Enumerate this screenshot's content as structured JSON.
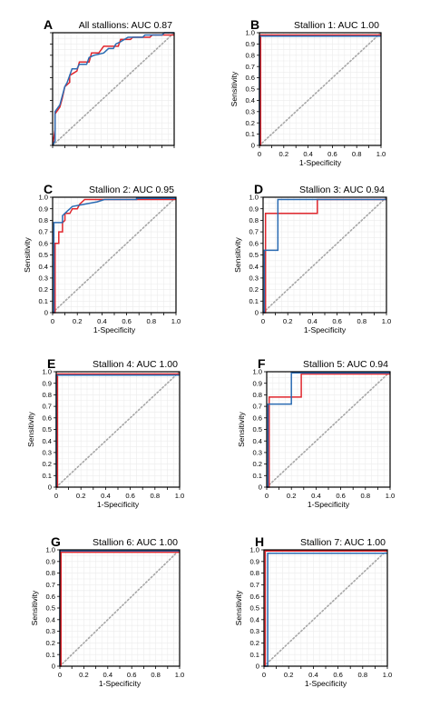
{
  "colors": {
    "red": "#e0262d",
    "blue": "#2b6bb2",
    "diagonal": "#a6a6a6",
    "grid": "#ececec",
    "frame": "#000000"
  },
  "chart_data": [
    {
      "type": "line",
      "letter": "A",
      "title": "All stallions: AUC 0.87",
      "xlabel": "",
      "ylabel": "",
      "xlim": [
        0,
        1
      ],
      "ylim": [
        0,
        1
      ],
      "ticks_labeled": false,
      "grid": true,
      "reference_diagonal": true,
      "series": [
        {
          "color": "red",
          "points": [
            [
              0,
              0
            ],
            [
              0.02,
              0.14
            ],
            [
              0.02,
              0.28
            ],
            [
              0.06,
              0.34
            ],
            [
              0.08,
              0.42
            ],
            [
              0.1,
              0.52
            ],
            [
              0.14,
              0.56
            ],
            [
              0.14,
              0.62
            ],
            [
              0.2,
              0.66
            ],
            [
              0.22,
              0.74
            ],
            [
              0.3,
              0.74
            ],
            [
              0.32,
              0.82
            ],
            [
              0.38,
              0.82
            ],
            [
              0.42,
              0.88
            ],
            [
              0.54,
              0.88
            ],
            [
              0.56,
              0.94
            ],
            [
              0.64,
              0.94
            ],
            [
              0.66,
              0.96
            ],
            [
              0.8,
              0.96
            ],
            [
              0.82,
              0.98
            ],
            [
              1,
              0.98
            ]
          ]
        },
        {
          "color": "blue",
          "points": [
            [
              0,
              0
            ],
            [
              0.02,
              0.04
            ],
            [
              0.02,
              0.3
            ],
            [
              0.06,
              0.36
            ],
            [
              0.08,
              0.44
            ],
            [
              0.1,
              0.52
            ],
            [
              0.12,
              0.56
            ],
            [
              0.14,
              0.62
            ],
            [
              0.16,
              0.68
            ],
            [
              0.2,
              0.68
            ],
            [
              0.22,
              0.72
            ],
            [
              0.28,
              0.72
            ],
            [
              0.3,
              0.78
            ],
            [
              0.34,
              0.8
            ],
            [
              0.42,
              0.82
            ],
            [
              0.46,
              0.86
            ],
            [
              0.5,
              0.86
            ],
            [
              0.52,
              0.9
            ],
            [
              0.56,
              0.92
            ],
            [
              0.62,
              0.96
            ],
            [
              0.74,
              0.96
            ],
            [
              0.76,
              0.98
            ],
            [
              0.9,
              0.98
            ],
            [
              0.92,
              1
            ],
            [
              1,
              1
            ]
          ]
        }
      ]
    },
    {
      "type": "line",
      "letter": "B",
      "title": "Stallion 1: AUC 1.00",
      "xlabel": "1-Specificity",
      "ylabel": "Sensitivity",
      "xlim": [
        0,
        1
      ],
      "ylim": [
        0,
        1
      ],
      "ticks_labeled": true,
      "x_ticks": [
        "0",
        "0.2",
        "0.4",
        "0.6",
        "0.8",
        "1.0"
      ],
      "y_ticks": [
        "0",
        "0.1",
        "0.2",
        "0.3",
        "0.4",
        "0.5",
        "0.6",
        "0.7",
        "0.8",
        "0.9",
        "1.0"
      ],
      "grid": true,
      "reference_diagonal": true,
      "series": [
        {
          "color": "red",
          "points": [
            [
              0,
              0
            ],
            [
              0.01,
              0
            ],
            [
              0.01,
              0.98
            ],
            [
              1,
              0.98
            ]
          ]
        },
        {
          "color": "blue",
          "points": [
            [
              0,
              0
            ],
            [
              0,
              0.97
            ],
            [
              1,
              0.97
            ]
          ]
        }
      ]
    },
    {
      "type": "line",
      "letter": "C",
      "title": "Stallion 2: AUC 0.95",
      "xlabel": "1-Specificity",
      "ylabel": "Sensitivity",
      "xlim": [
        0,
        1
      ],
      "ylim": [
        0,
        1
      ],
      "ticks_labeled": true,
      "x_ticks": [
        "0",
        "0.2",
        "0.4",
        "0.6",
        "0.8",
        "1.0"
      ],
      "y_ticks": [
        "0",
        "0.1",
        "0.2",
        "0.3",
        "0.4",
        "0.5",
        "0.6",
        "0.7",
        "0.8",
        "0.9",
        "1.0"
      ],
      "grid": true,
      "reference_diagonal": true,
      "series": [
        {
          "color": "red",
          "points": [
            [
              0,
              0
            ],
            [
              0.02,
              0
            ],
            [
              0.02,
              0.6
            ],
            [
              0.05,
              0.6
            ],
            [
              0.05,
              0.7
            ],
            [
              0.08,
              0.7
            ],
            [
              0.08,
              0.78
            ],
            [
              0.1,
              0.8
            ],
            [
              0.1,
              0.86
            ],
            [
              0.14,
              0.86
            ],
            [
              0.16,
              0.9
            ],
            [
              0.2,
              0.9
            ],
            [
              0.22,
              0.94
            ],
            [
              0.26,
              0.98
            ],
            [
              1,
              0.98
            ]
          ]
        },
        {
          "color": "blue",
          "points": [
            [
              0,
              0
            ],
            [
              0.01,
              0
            ],
            [
              0.01,
              0.78
            ],
            [
              0.08,
              0.78
            ],
            [
              0.08,
              0.84
            ],
            [
              0.12,
              0.88
            ],
            [
              0.16,
              0.92
            ],
            [
              0.26,
              0.94
            ],
            [
              0.36,
              0.96
            ],
            [
              0.42,
              0.98
            ],
            [
              0.68,
              0.98
            ],
            [
              0.68,
              0.99
            ],
            [
              1,
              0.99
            ]
          ]
        }
      ]
    },
    {
      "type": "line",
      "letter": "D",
      "title": "Stallion 3: AUC 0.94",
      "xlabel": "1-Specificity",
      "ylabel": "Sensitivity",
      "xlim": [
        0,
        1
      ],
      "ylim": [
        0,
        1
      ],
      "ticks_labeled": true,
      "x_ticks": [
        "0",
        "0.2",
        "0.4",
        "0.6",
        "0.8",
        "1.0"
      ],
      "y_ticks": [
        "0",
        "0.1",
        "0.2",
        "0.3",
        "0.4",
        "0.5",
        "0.6",
        "0.7",
        "0.8",
        "0.9",
        "1.0"
      ],
      "grid": true,
      "reference_diagonal": true,
      "series": [
        {
          "color": "red",
          "points": [
            [
              0,
              0
            ],
            [
              0.02,
              0
            ],
            [
              0.02,
              0.86
            ],
            [
              0.44,
              0.86
            ],
            [
              0.44,
              0.98
            ],
            [
              1,
              0.98
            ]
          ]
        },
        {
          "color": "blue",
          "points": [
            [
              0,
              0
            ],
            [
              0.01,
              0
            ],
            [
              0.01,
              0.54
            ],
            [
              0.12,
              0.54
            ],
            [
              0.12,
              0.98
            ],
            [
              1,
              0.98
            ]
          ]
        }
      ]
    },
    {
      "type": "line",
      "letter": "E",
      "title": "Stallion 4: AUC 1.00",
      "xlabel": "1-Specificity",
      "ylabel": "Sensitivity",
      "xlim": [
        0,
        1
      ],
      "ylim": [
        0,
        1
      ],
      "ticks_labeled": true,
      "x_ticks": [
        "0",
        "0.2",
        "0.4",
        "0.6",
        "0.8",
        "1.0"
      ],
      "y_ticks": [
        "0",
        "0.1",
        "0.2",
        "0.3",
        "0.4",
        "0.5",
        "0.6",
        "0.7",
        "0.8",
        "0.9",
        "1.0"
      ],
      "grid": true,
      "reference_diagonal": true,
      "series": [
        {
          "color": "red",
          "points": [
            [
              0,
              0
            ],
            [
              0.01,
              0
            ],
            [
              0.01,
              0.98
            ],
            [
              1,
              0.98
            ]
          ]
        },
        {
          "color": "blue",
          "points": [
            [
              0,
              0
            ],
            [
              0,
              0.97
            ],
            [
              1,
              0.97
            ]
          ]
        }
      ]
    },
    {
      "type": "line",
      "letter": "F",
      "title": "Stallion 5: AUC 0.94",
      "xlabel": "1-Specificity",
      "ylabel": "Sensitivity",
      "xlim": [
        0,
        1
      ],
      "ylim": [
        0,
        1
      ],
      "ticks_labeled": true,
      "x_ticks": [
        "0",
        "0.2",
        "0.4",
        "0.6",
        "0.8",
        "1.0"
      ],
      "y_ticks": [
        "0",
        "0.1",
        "0.2",
        "0.3",
        "0.4",
        "0.5",
        "0.6",
        "0.7",
        "0.8",
        "0.9",
        "1.0"
      ],
      "grid": true,
      "reference_diagonal": true,
      "series": [
        {
          "color": "red",
          "points": [
            [
              0,
              0
            ],
            [
              0.02,
              0
            ],
            [
              0.02,
              0.78
            ],
            [
              0.28,
              0.78
            ],
            [
              0.28,
              0.98
            ],
            [
              1,
              0.98
            ]
          ]
        },
        {
          "color": "blue",
          "points": [
            [
              0,
              0
            ],
            [
              0.01,
              0
            ],
            [
              0.01,
              0.72
            ],
            [
              0.2,
              0.72
            ],
            [
              0.2,
              0.99
            ],
            [
              1,
              0.99
            ]
          ]
        }
      ]
    },
    {
      "type": "line",
      "letter": "G",
      "title": "Stallion 6:  AUC 1.00",
      "xlabel": "1-Specificity",
      "ylabel": "Sensitivity",
      "xlim": [
        0,
        1
      ],
      "ylim": [
        0,
        1
      ],
      "ticks_labeled": true,
      "x_ticks": [
        "0",
        "0.2",
        "0.4",
        "0.6",
        "0.8",
        "1.0"
      ],
      "y_ticks": [
        "0",
        "0.1",
        "0.2",
        "0.3",
        "0.4",
        "0.5",
        "0.6",
        "0.7",
        "0.8",
        "0.9",
        "1.0"
      ],
      "grid": true,
      "reference_diagonal": true,
      "series": [
        {
          "color": "blue",
          "points": [
            [
              0,
              0
            ],
            [
              0,
              0.99
            ],
            [
              1,
              0.99
            ]
          ]
        },
        {
          "color": "red",
          "points": [
            [
              0,
              0
            ],
            [
              0.01,
              0
            ],
            [
              0.01,
              0.98
            ],
            [
              1,
              0.98
            ]
          ]
        }
      ]
    },
    {
      "type": "line",
      "letter": "H",
      "title": "Stallion 7: AUC 1.00",
      "xlabel": "1-Specificity",
      "ylabel": "Sensitivity",
      "xlim": [
        0,
        1
      ],
      "ylim": [
        0,
        1
      ],
      "ticks_labeled": true,
      "x_ticks": [
        "0",
        "0.2",
        "0.4",
        "0.6",
        "0.8",
        "1.0"
      ],
      "y_ticks": [
        "0",
        "0.1",
        "0.2",
        "0.3",
        "0.4",
        "0.5",
        "0.6",
        "0.7",
        "0.8",
        "0.9",
        "1.0"
      ],
      "grid": true,
      "reference_diagonal": true,
      "series": [
        {
          "color": "red",
          "points": [
            [
              0,
              0
            ],
            [
              0.01,
              0
            ],
            [
              0.01,
              0.99
            ],
            [
              1,
              0.99
            ]
          ]
        },
        {
          "color": "blue",
          "points": [
            [
              0,
              0
            ],
            [
              0.03,
              0
            ],
            [
              0.03,
              0.97
            ],
            [
              1,
              0.97
            ]
          ]
        }
      ]
    }
  ]
}
